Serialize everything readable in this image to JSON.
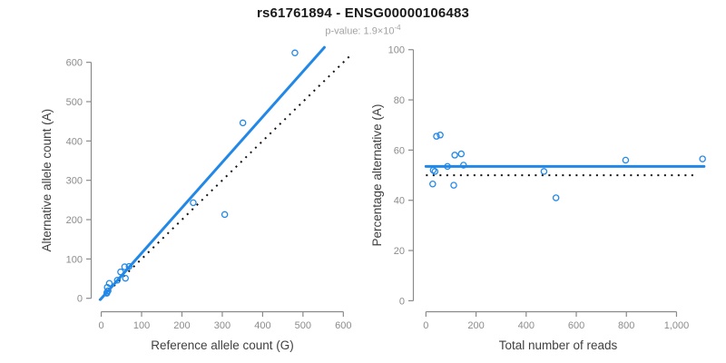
{
  "header": {
    "title": "rs61761894 - ENSG00000106483",
    "pvalue_text": "p-value: 1.9×10",
    "pvalue_exponent": "-4"
  },
  "colors": {
    "accent_blue": "#2288e8",
    "reference_line": "#111111",
    "axis": "#8a8a8a",
    "tick_label": "#8c8c8c",
    "axis_title": "#404040"
  },
  "chart_data": [
    {
      "type": "scatter",
      "name": "allele-count-scatter",
      "xlabel": "Reference allele count (G)",
      "ylabel": "Alternative allele count (A)",
      "xlim": [
        -26,
        633
      ],
      "ylim": [
        -33,
        650
      ],
      "xticks": [
        0,
        100,
        200,
        300,
        400,
        500,
        600
      ],
      "xtick_labels": [
        "0",
        "100",
        "200",
        "300",
        "400",
        "500",
        "600"
      ],
      "yticks": [
        0,
        100,
        200,
        300,
        400,
        500,
        600
      ],
      "ytick_labels": [
        "0",
        "100",
        "200",
        "300",
        "400",
        "500",
        "600"
      ],
      "grid": false,
      "points": [
        [
          14,
          13
        ],
        [
          14,
          15
        ],
        [
          17,
          19
        ],
        [
          15,
          28
        ],
        [
          20,
          38
        ],
        [
          40,
          46
        ],
        [
          60,
          51
        ],
        [
          48,
          67
        ],
        [
          58,
          80
        ],
        [
          69,
          81
        ],
        [
          228,
          243
        ],
        [
          306,
          213
        ],
        [
          351,
          446
        ],
        [
          480,
          624
        ]
      ],
      "fit_line": {
        "x1": -2,
        "y1": -3,
        "x2": 553,
        "y2": 638,
        "slope_note": "y=1.155x"
      },
      "ref_line": {
        "x1": -5,
        "y1": -5,
        "x2": 616,
        "y2": 616,
        "slope_note": "y=x"
      }
    },
    {
      "type": "scatter",
      "name": "percentage-scatter",
      "xlabel": "Total number of reads",
      "ylabel": "Percentage alternative (A)",
      "xlim": [
        -52,
        1107
      ],
      "ylim": [
        -4.2,
        102.8
      ],
      "xticks": [
        0,
        200,
        400,
        600,
        800,
        1000
      ],
      "xtick_labels": [
        "0",
        "200",
        "400",
        "600",
        "800",
        "1,000"
      ],
      "yticks": [
        0,
        20,
        40,
        60,
        80,
        100
      ],
      "ytick_labels": [
        "0",
        "20",
        "40",
        "60",
        "80",
        "100"
      ],
      "grid": false,
      "points": [
        [
          27,
          46.5
        ],
        [
          29,
          52
        ],
        [
          36,
          51.5
        ],
        [
          42,
          65.5
        ],
        [
          57,
          66
        ],
        [
          86,
          53.5
        ],
        [
          111,
          46
        ],
        [
          115,
          58
        ],
        [
          141,
          58.5
        ],
        [
          150,
          54
        ],
        [
          471,
          51.5
        ],
        [
          519,
          41
        ],
        [
          797,
          56
        ],
        [
          1104,
          56.5
        ]
      ],
      "fit_line": {
        "x1": 0,
        "y1": 53.5,
        "x2": 1110,
        "y2": 53.5,
        "slope_note": "mean 53.5%"
      },
      "ref_line": {
        "x1": 0,
        "y1": 50,
        "x2": 1072,
        "y2": 50,
        "slope_note": "50%"
      }
    }
  ]
}
